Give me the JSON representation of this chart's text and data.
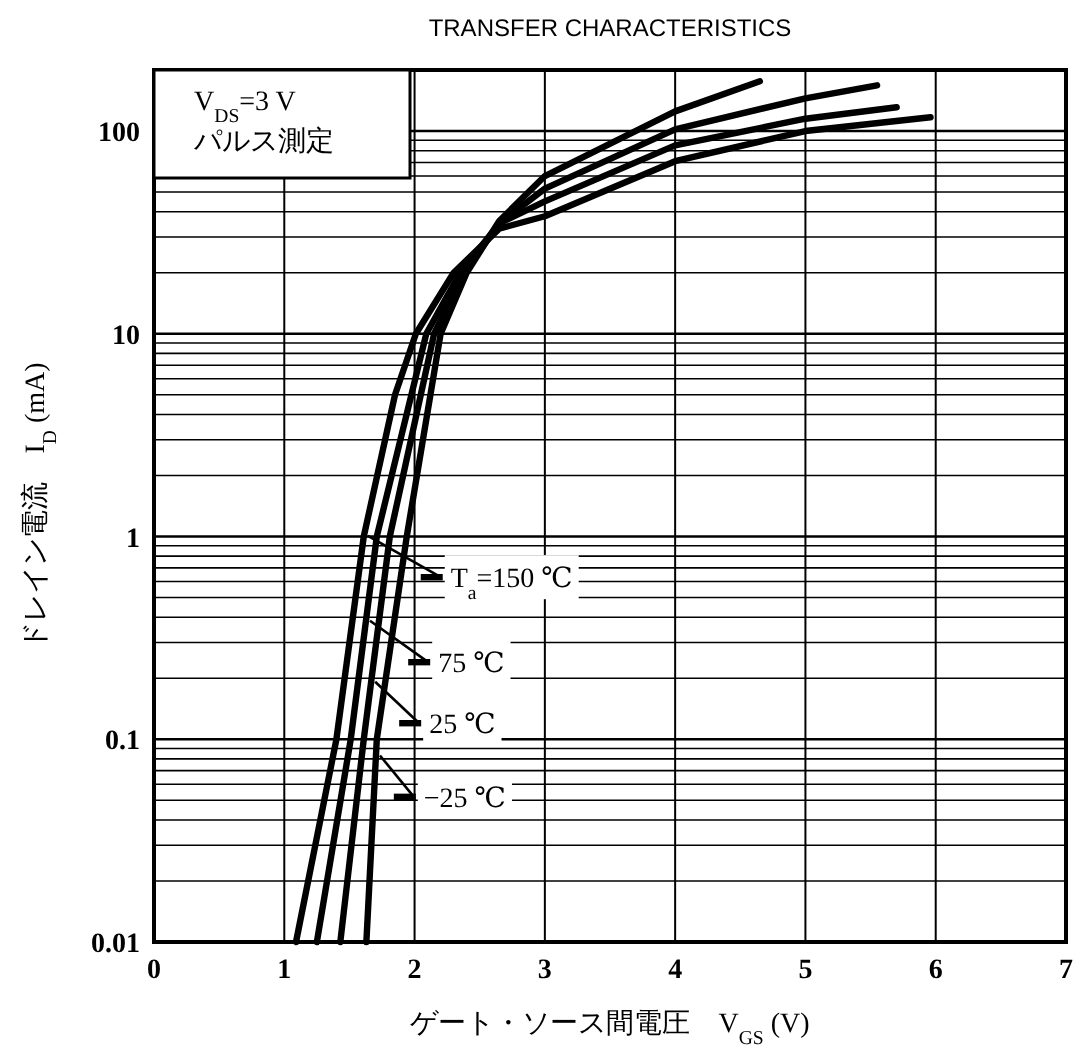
{
  "chart_data": {
    "type": "line",
    "title": "TRANSFER CHARACTERISTICS",
    "xlabel": "ゲート・ソース間電圧　V$_{GS}$ (V)",
    "ylabel": "ドレイン電流　I$_{D}$ (mA)",
    "annotations": [
      "V$_{DS}$=3 V",
      "パルス測定"
    ],
    "xlim": [
      0,
      7
    ],
    "ylim": [
      0.01,
      200
    ],
    "xticks": [
      0,
      1,
      2,
      3,
      4,
      5,
      6,
      7
    ],
    "yticks": [
      0.01,
      0.1,
      1,
      10,
      100
    ],
    "log": "y",
    "grid": true,
    "legend": "bottom left",
    "line_style": "solid",
    "series": [
      {
        "name": "T$_{a}$=150 ℃",
        "color": "#000000",
        "x": [
          1.09,
          1.4,
          1.61,
          1.85,
          2.01,
          2.3,
          2.65,
          3,
          4,
          5,
          5.96
        ],
        "values": [
          0.01,
          0.1,
          1,
          5,
          10,
          20,
          33,
          38,
          71,
          100,
          117
        ]
      },
      {
        "name": "75 ℃",
        "color": "#000000",
        "x": [
          1.25,
          1.51,
          1.71,
          2.09,
          2.35,
          2.65,
          3,
          4,
          5,
          5.7
        ],
        "values": [
          0.01,
          0.1,
          1,
          10,
          20,
          35,
          45,
          85,
          115,
          131
        ]
      },
      {
        "name": "25 ℃",
        "color": "#000000",
        "x": [
          1.43,
          1.61,
          1.81,
          2.15,
          2.38,
          2.65,
          3,
          4,
          5,
          5.55
        ],
        "values": [
          0.01,
          0.1,
          1,
          10,
          20,
          35,
          52,
          102,
          145,
          168
        ]
      },
      {
        "name": "−25 ℃",
        "color": "#000000",
        "x": [
          1.63,
          1.71,
          1.94,
          2.2,
          2.4,
          2.65,
          3,
          4,
          4.65
        ],
        "values": [
          0.01,
          0.1,
          1,
          10,
          20,
          36,
          60,
          125,
          176
        ]
      }
    ]
  }
}
